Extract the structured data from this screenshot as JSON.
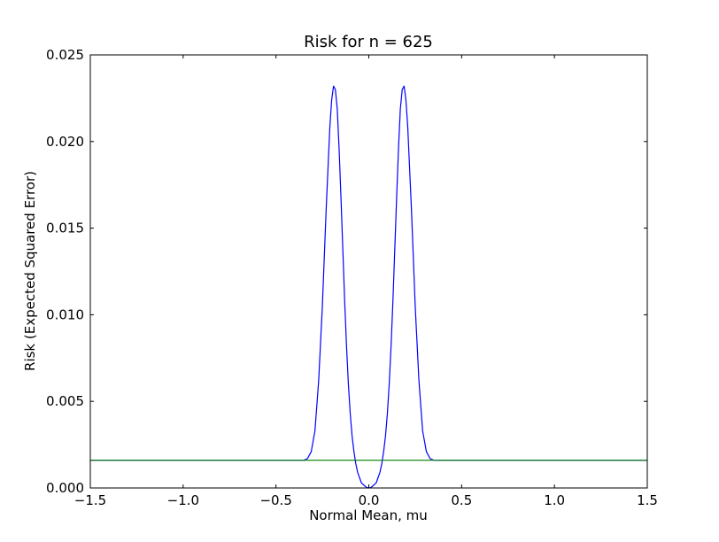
{
  "chart_data": {
    "type": "line",
    "title": "Risk for n = 625",
    "xlabel": "Normal Mean, mu",
    "ylabel": "Risk (Expected Squared Error)",
    "xlim": [
      -1.5,
      1.5
    ],
    "ylim": [
      0.0,
      0.025
    ],
    "xticks": [
      -1.5,
      -1.0,
      -0.5,
      0.0,
      0.5,
      1.0,
      1.5
    ],
    "xtick_labels": [
      "−1.5",
      "−1.0",
      "−0.5",
      "0.0",
      "0.5",
      "1.0",
      "1.5"
    ],
    "yticks": [
      0.0,
      0.005,
      0.01,
      0.015,
      0.02,
      0.025
    ],
    "ytick_labels": [
      "0.000",
      "0.005",
      "0.010",
      "0.015",
      "0.020",
      "0.025"
    ],
    "grid": false,
    "series": [
      {
        "color": "#0000ff",
        "x": [
          -1.5,
          -0.4,
          -0.35,
          -0.33,
          -0.31,
          -0.29,
          -0.27,
          -0.25,
          -0.23,
          -0.21,
          -0.2,
          -0.19,
          -0.18,
          -0.17,
          -0.16,
          -0.15,
          -0.14,
          -0.13,
          -0.12,
          -0.11,
          -0.1,
          -0.09,
          -0.08,
          -0.07,
          -0.06,
          -0.05,
          -0.04,
          -0.03,
          -0.02,
          -0.01,
          0.0,
          0.01,
          0.02,
          0.03,
          0.04,
          0.05,
          0.06,
          0.07,
          0.08,
          0.09,
          0.1,
          0.11,
          0.12,
          0.13,
          0.14,
          0.15,
          0.16,
          0.17,
          0.18,
          0.19,
          0.2,
          0.21,
          0.23,
          0.25,
          0.27,
          0.29,
          0.31,
          0.33,
          0.35,
          0.4,
          1.5
        ],
        "y": [
          0.0016,
          0.0016,
          0.0016,
          0.0017,
          0.0021,
          0.0033,
          0.0062,
          0.0105,
          0.016,
          0.0208,
          0.0224,
          0.0232,
          0.023,
          0.0219,
          0.0196,
          0.0168,
          0.0138,
          0.0108,
          0.0082,
          0.006,
          0.0043,
          0.003,
          0.0021,
          0.0014,
          0.0009,
          0.0006,
          0.0003,
          0.0002,
          0.0001,
          2e-05,
          0.0,
          2e-05,
          0.0001,
          0.0002,
          0.0003,
          0.0006,
          0.0009,
          0.0014,
          0.0021,
          0.003,
          0.0043,
          0.006,
          0.0082,
          0.0108,
          0.0138,
          0.0168,
          0.0196,
          0.0219,
          0.023,
          0.0232,
          0.0224,
          0.0208,
          0.016,
          0.0105,
          0.0062,
          0.0033,
          0.0021,
          0.0017,
          0.0016,
          0.0016,
          0.0016
        ]
      },
      {
        "color": "#008000",
        "x": [
          -1.5,
          1.5
        ],
        "y": [
          0.0016,
          0.0016
        ]
      }
    ]
  }
}
